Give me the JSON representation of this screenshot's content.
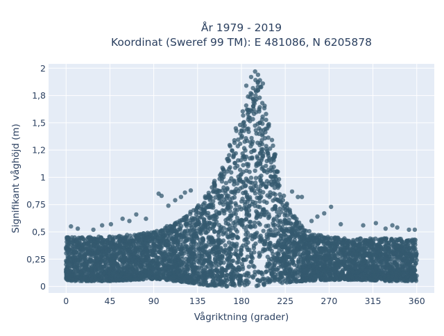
{
  "chart_data": {
    "type": "scatter",
    "title_lines": [
      "År 1979 - 2019",
      "Koordinat (Sweref 99 TM): E 481086, N 6205878"
    ],
    "xlabel": "Vågriktning (grader)",
    "ylabel": "Signifikant våghöjd (m)",
    "xlim": [
      -18,
      378
    ],
    "ylim": [
      -0.06,
      2.04
    ],
    "x_ticks": [
      0,
      45,
      90,
      135,
      180,
      225,
      270,
      315,
      360
    ],
    "x_tick_labels": [
      "0",
      "45",
      "90",
      "135",
      "180",
      "225",
      "270",
      "315",
      "360"
    ],
    "y_ticks": [
      0,
      0.25,
      0.5,
      0.75,
      1,
      1.25,
      1.5,
      1.75,
      2
    ],
    "y_tick_labels": [
      "0",
      "0,25",
      "0,5",
      "0,75",
      "1",
      "1,2",
      "1,5",
      "1,8",
      "2"
    ],
    "grid": true,
    "legend": "none",
    "colors": {
      "marker": "#34596f",
      "plot_bg": "#e5ecf6",
      "grid": "#ffffff"
    },
    "envelope": {
      "description_note": "estimated band of point density read from the chart",
      "x": [
        0,
        20,
        45,
        70,
        90,
        110,
        130,
        145,
        160,
        170,
        180,
        190,
        195,
        200,
        210,
        220,
        230,
        245,
        270,
        300,
        330,
        360
      ],
      "y_low": [
        0.05,
        0.05,
        0.05,
        0.06,
        0.07,
        0.05,
        0.03,
        0.01,
        0.0,
        0.0,
        0.0,
        0.0,
        0.0,
        0.01,
        0.02,
        0.03,
        0.04,
        0.05,
        0.06,
        0.06,
        0.05,
        0.05
      ],
      "y_high": [
        0.45,
        0.45,
        0.46,
        0.48,
        0.5,
        0.58,
        0.7,
        0.85,
        1.1,
        1.35,
        1.6,
        1.82,
        1.9,
        1.85,
        1.45,
        0.95,
        0.7,
        0.52,
        0.45,
        0.44,
        0.44,
        0.43
      ]
    },
    "outliers": [
      [
        5,
        0.55
      ],
      [
        12,
        0.53
      ],
      [
        28,
        0.52
      ],
      [
        37,
        0.56
      ],
      [
        46,
        0.57
      ],
      [
        58,
        0.62
      ],
      [
        65,
        0.6
      ],
      [
        72,
        0.66
      ],
      [
        82,
        0.62
      ],
      [
        95,
        0.85
      ],
      [
        98,
        0.83
      ],
      [
        105,
        0.74
      ],
      [
        112,
        0.79
      ],
      [
        118,
        0.82
      ],
      [
        122,
        0.86
      ],
      [
        128,
        0.88
      ],
      [
        185,
        1.84
      ],
      [
        190,
        1.92
      ],
      [
        194,
        1.97
      ],
      [
        197,
        1.94
      ],
      [
        199,
        1.89
      ],
      [
        202,
        1.86
      ],
      [
        232,
        0.87
      ],
      [
        238,
        0.82
      ],
      [
        242,
        0.82
      ],
      [
        252,
        0.6
      ],
      [
        258,
        0.64
      ],
      [
        265,
        0.67
      ],
      [
        272,
        0.73
      ],
      [
        282,
        0.57
      ],
      [
        305,
        0.56
      ],
      [
        318,
        0.58
      ],
      [
        328,
        0.53
      ],
      [
        335,
        0.56
      ],
      [
        340,
        0.54
      ],
      [
        352,
        0.52
      ],
      [
        358,
        0.52
      ]
    ]
  }
}
